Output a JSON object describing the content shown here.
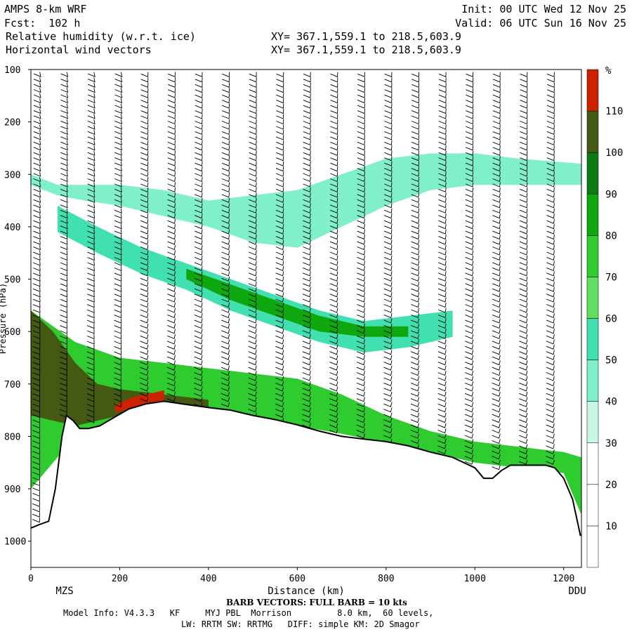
{
  "header": {
    "model": "AMPS 8-km WRF",
    "fcst": "Fcst:  102 h",
    "field1": "Relative humidity (w.r.t. ice)",
    "field2": "Horizontal wind vectors",
    "init": "Init: 00 UTC Wed 12 Nov 25",
    "valid": "Valid: 06 UTC Sun 16 Nov 25",
    "xy1": "XY= 367.1,559.1 to 218.5,603.9",
    "xy2": "XY= 367.1,559.1 to 218.5,603.9"
  },
  "chart_data": {
    "type": "heatmap",
    "title": "Relative humidity (w.r.t. ice) cross-section with horizontal wind barbs",
    "xlabel": "Distance (km)",
    "ylabel": "Pressure (hPa)",
    "xlim": [
      0,
      1240
    ],
    "ylim": [
      1050,
      100
    ],
    "x_ticks": [
      0,
      200,
      400,
      600,
      800,
      1000,
      1200
    ],
    "y_ticks": [
      100,
      200,
      300,
      400,
      500,
      600,
      700,
      800,
      900,
      1000
    ],
    "x_end_labels": {
      "left": "MZS",
      "right": "DDU"
    },
    "colorbar": {
      "unit": "%",
      "levels": [
        10,
        20,
        30,
        40,
        50,
        60,
        70,
        80,
        90,
        100,
        110
      ],
      "colors": [
        "#ffffff",
        "#ffffff",
        "#ffffff",
        "#c8f7e3",
        "#7ff0c8",
        "#40e0b0",
        "#60e060",
        "#2ecc2e",
        "#0ea80e",
        "#0d7a12",
        "#445a12",
        "#cc2200"
      ]
    },
    "terrain": {
      "x": [
        0,
        20,
        40,
        55,
        70,
        80,
        95,
        110,
        130,
        155,
        185,
        220,
        260,
        300,
        340,
        400,
        450,
        500,
        550,
        600,
        650,
        700,
        750,
        800,
        850,
        900,
        950,
        1000,
        1020,
        1040,
        1060,
        1080,
        1100,
        1130,
        1160,
        1180,
        1200,
        1220,
        1238
      ],
      "p": [
        975,
        968,
        962,
        900,
        800,
        760,
        770,
        785,
        785,
        780,
        765,
        748,
        738,
        733,
        738,
        745,
        750,
        760,
        768,
        778,
        790,
        800,
        805,
        810,
        818,
        830,
        840,
        860,
        880,
        880,
        865,
        855,
        855,
        855,
        855,
        860,
        880,
        920,
        990
      ]
    },
    "moist_bands": [
      {
        "x": [
          0,
          60,
          120,
          200,
          300,
          400,
          500,
          600,
          700,
          800,
          900,
          1000,
          1100,
          1240
        ],
        "p_top": [
          300,
          320,
          320,
          320,
          330,
          350,
          340,
          330,
          300,
          270,
          260,
          260,
          270,
          280
        ],
        "p_bot": [
          320,
          340,
          350,
          360,
          380,
          400,
          430,
          440,
          400,
          360,
          330,
          320,
          320,
          320
        ],
        "rh": 40
      },
      {
        "x": [
          60,
          150,
          250,
          350,
          450,
          550,
          650,
          750,
          850,
          950
        ],
        "p_top": [
          360,
          400,
          440,
          470,
          500,
          530,
          560,
          580,
          570,
          560
        ],
        "p_bot": [
          410,
          450,
          490,
          520,
          560,
          590,
          620,
          640,
          630,
          610
        ],
        "rh": 50
      },
      {
        "x": [
          350,
          450,
          550,
          650,
          750,
          850
        ],
        "p_top": [
          480,
          510,
          540,
          570,
          590,
          590
        ],
        "p_bot": [
          500,
          540,
          570,
          600,
          610,
          610
        ],
        "rh": 80
      },
      {
        "x": [
          0,
          100,
          200,
          300,
          400,
          500,
          600,
          700,
          800,
          900,
          1000,
          1100,
          1200,
          1240
        ],
        "p_top": [
          560,
          620,
          650,
          660,
          670,
          680,
          690,
          720,
          760,
          790,
          810,
          820,
          830,
          840
        ],
        "p_bot": [
          900,
          800,
          770,
          755,
          758,
          768,
          780,
          795,
          812,
          830,
          850,
          860,
          870,
          950
        ],
        "rh": 70
      },
      {
        "x": [
          0,
          50,
          100,
          150,
          200,
          300,
          400
        ],
        "p_top": [
          560,
          600,
          660,
          700,
          710,
          720,
          730
        ],
        "p_bot": [
          760,
          770,
          780,
          770,
          760,
          745,
          750
        ],
        "rh": 100
      },
      {
        "x": [
          190,
          230,
          270,
          300
        ],
        "p_top": [
          740,
          725,
          718,
          712
        ],
        "p_bot": [
          755,
          745,
          738,
          735
        ],
        "rh": 110
      }
    ],
    "barbs": "Horizontal wind barbs plotted in columns every ~60 km along the section",
    "footnote_barb": "BARB VECTORS: FULL BARB = 10 kts",
    "model_info_1": "Model Info: V4.3.3   KF     MYJ PBL  Morrison         8.0 km,  60 levels,",
    "model_info_2": "LW: RRTM SW: RRTMG   DIFF: simple KM: 2D Smagor"
  }
}
